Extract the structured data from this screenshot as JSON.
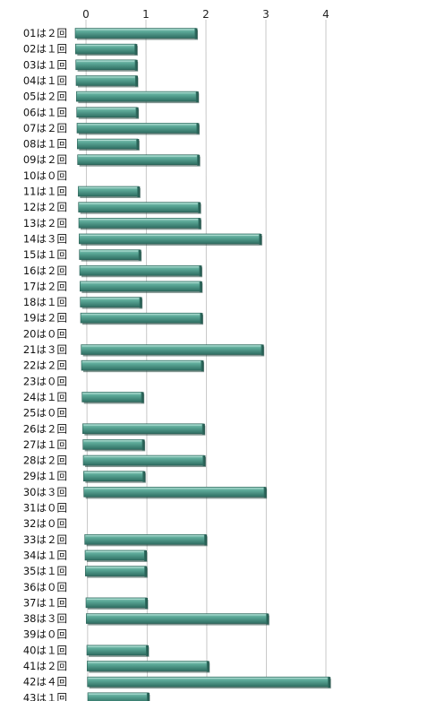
{
  "chart_data": {
    "type": "bar",
    "orientation": "horizontal",
    "title": "",
    "xlabel": "",
    "ylabel": "",
    "xlim": [
      0,
      4
    ],
    "x_ticks": [
      "0",
      "1",
      "2",
      "3",
      "4"
    ],
    "grid": true,
    "categories": [
      "01は２回",
      "02は１回",
      "03は１回",
      "04は１回",
      "05は２回",
      "06は１回",
      "07は２回",
      "08は１回",
      "09は２回",
      "10は０回",
      "11は１回",
      "12は２回",
      "13は２回",
      "14は３回",
      "15は１回",
      "16は２回",
      "17は２回",
      "18は１回",
      "19は２回",
      "20は０回",
      "21は３回",
      "22は２回",
      "23は０回",
      "24は１回",
      "25は０回",
      "26は２回",
      "27は１回",
      "28は２回",
      "29は１回",
      "30は３回",
      "31は０回",
      "32は０回",
      "33は２回",
      "34は１回",
      "35は１回",
      "36は０回",
      "37は１回",
      "38は３回",
      "39は０回",
      "40は１回",
      "41は２回",
      "42は４回",
      "43は１回"
    ],
    "values": [
      2,
      1,
      1,
      1,
      2,
      1,
      2,
      1,
      2,
      0,
      1,
      2,
      2,
      3,
      1,
      2,
      2,
      1,
      2,
      0,
      3,
      2,
      0,
      1,
      0,
      2,
      1,
      2,
      1,
      3,
      0,
      0,
      2,
      1,
      1,
      0,
      1,
      3,
      0,
      1,
      2,
      4,
      1
    ],
    "bar_color": "#4d9a8a"
  }
}
